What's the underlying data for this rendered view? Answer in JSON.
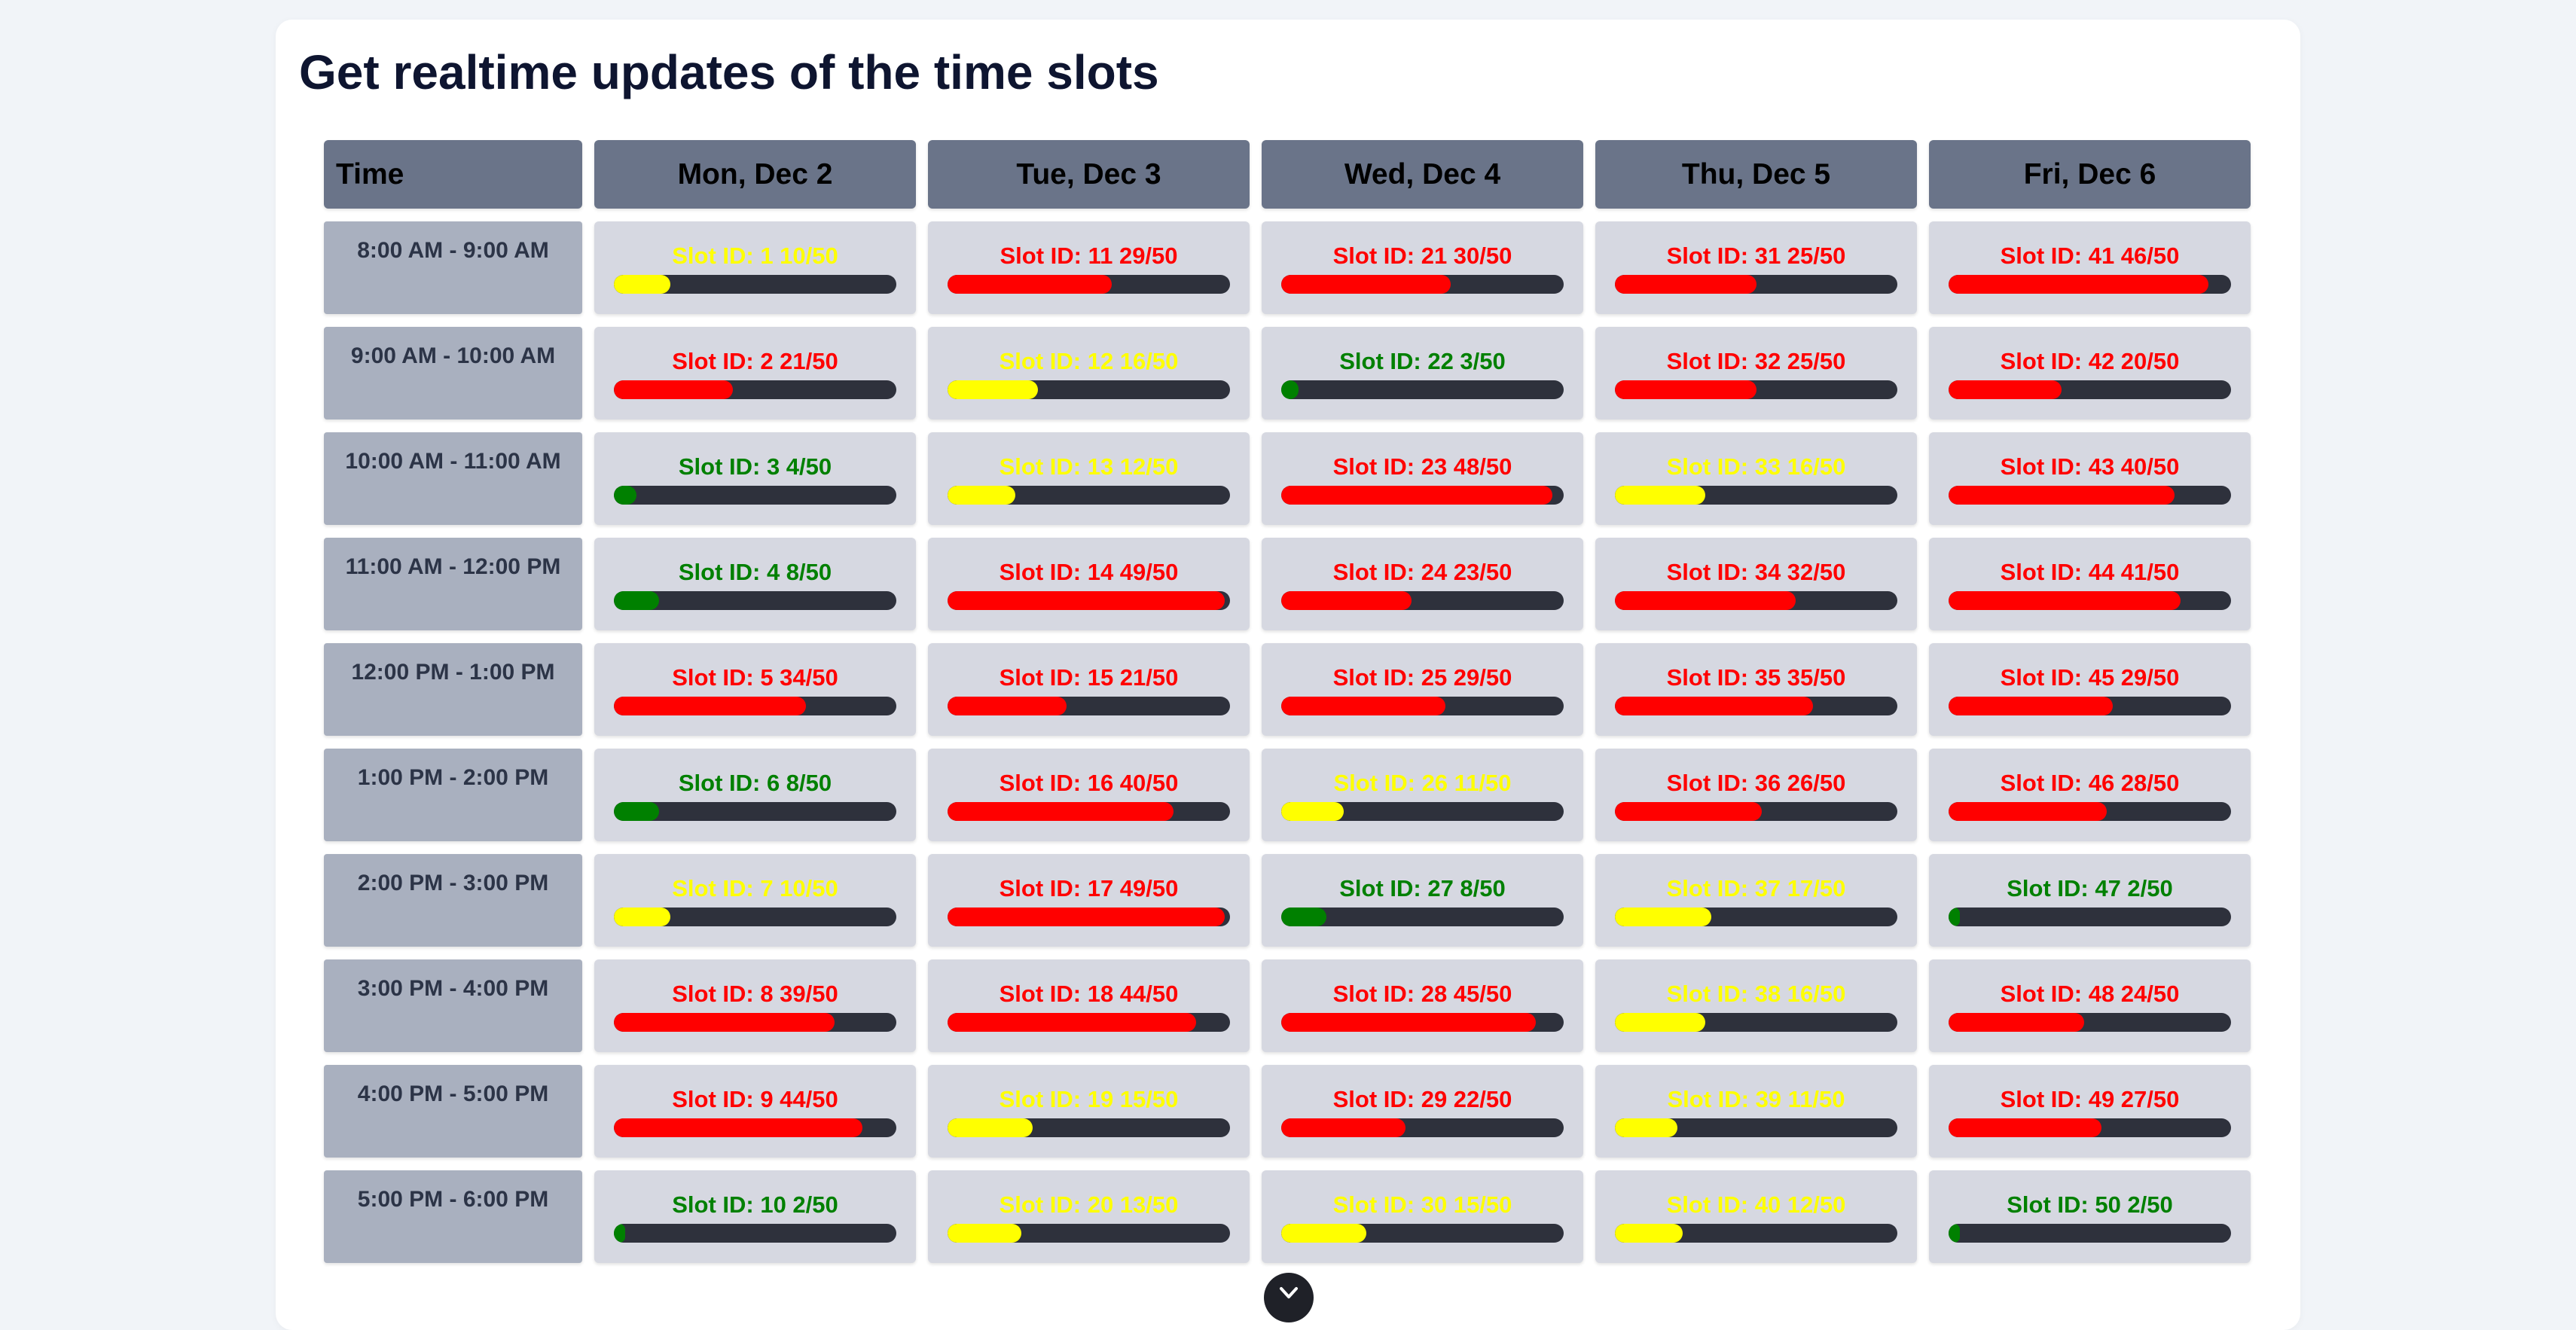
{
  "title": "Get realtime updates of the time slots",
  "colors": {
    "low": "#008000",
    "medium": "#ffff00",
    "high": "#ff0000",
    "bar_track": "#2e313c"
  },
  "capacity": 50,
  "header": {
    "time_label": "Time",
    "days": [
      "Mon, Dec 2",
      "Tue, Dec 3",
      "Wed, Dec 4",
      "Thu, Dec 5",
      "Fri, Dec 6"
    ]
  },
  "rows": [
    {
      "time": "8:00 AM - 9:00 AM",
      "slots": [
        {
          "label": "Slot ID: 1 10/50",
          "booked": 10,
          "status": "medium"
        },
        {
          "label": "Slot ID: 11 29/50",
          "booked": 29,
          "status": "high"
        },
        {
          "label": "Slot ID: 21 30/50",
          "booked": 30,
          "status": "high"
        },
        {
          "label": "Slot ID: 31 25/50",
          "booked": 25,
          "status": "high"
        },
        {
          "label": "Slot ID: 41 46/50",
          "booked": 46,
          "status": "high"
        }
      ]
    },
    {
      "time": "9:00 AM - 10:00 AM",
      "slots": [
        {
          "label": "Slot ID: 2 21/50",
          "booked": 21,
          "status": "high"
        },
        {
          "label": "Slot ID: 12 16/50",
          "booked": 16,
          "status": "medium"
        },
        {
          "label": "Slot ID: 22 3/50",
          "booked": 3,
          "status": "low"
        },
        {
          "label": "Slot ID: 32 25/50",
          "booked": 25,
          "status": "high"
        },
        {
          "label": "Slot ID: 42 20/50",
          "booked": 20,
          "status": "high"
        }
      ]
    },
    {
      "time": "10:00 AM - 11:00 AM",
      "slots": [
        {
          "label": "Slot ID: 3 4/50",
          "booked": 4,
          "status": "low"
        },
        {
          "label": "Slot ID: 13 12/50",
          "booked": 12,
          "status": "medium"
        },
        {
          "label": "Slot ID: 23 48/50",
          "booked": 48,
          "status": "high"
        },
        {
          "label": "Slot ID: 33 16/50",
          "booked": 16,
          "status": "medium"
        },
        {
          "label": "Slot ID: 43 40/50",
          "booked": 40,
          "status": "high"
        }
      ]
    },
    {
      "time": "11:00 AM - 12:00 PM",
      "slots": [
        {
          "label": "Slot ID: 4 8/50",
          "booked": 8,
          "status": "low"
        },
        {
          "label": "Slot ID: 14 49/50",
          "booked": 49,
          "status": "high"
        },
        {
          "label": "Slot ID: 24 23/50",
          "booked": 23,
          "status": "high"
        },
        {
          "label": "Slot ID: 34 32/50",
          "booked": 32,
          "status": "high"
        },
        {
          "label": "Slot ID: 44 41/50",
          "booked": 41,
          "status": "high"
        }
      ]
    },
    {
      "time": "12:00 PM - 1:00 PM",
      "slots": [
        {
          "label": "Slot ID: 5 34/50",
          "booked": 34,
          "status": "high"
        },
        {
          "label": "Slot ID: 15 21/50",
          "booked": 21,
          "status": "high"
        },
        {
          "label": "Slot ID: 25 29/50",
          "booked": 29,
          "status": "high"
        },
        {
          "label": "Slot ID: 35 35/50",
          "booked": 35,
          "status": "high"
        },
        {
          "label": "Slot ID: 45 29/50",
          "booked": 29,
          "status": "high"
        }
      ]
    },
    {
      "time": "1:00 PM - 2:00 PM",
      "slots": [
        {
          "label": "Slot ID: 6 8/50",
          "booked": 8,
          "status": "low"
        },
        {
          "label": "Slot ID: 16 40/50",
          "booked": 40,
          "status": "high"
        },
        {
          "label": "Slot ID: 26 11/50",
          "booked": 11,
          "status": "medium"
        },
        {
          "label": "Slot ID: 36 26/50",
          "booked": 26,
          "status": "high"
        },
        {
          "label": "Slot ID: 46 28/50",
          "booked": 28,
          "status": "high"
        }
      ]
    },
    {
      "time": "2:00 PM - 3:00 PM",
      "slots": [
        {
          "label": "Slot ID: 7 10/50",
          "booked": 10,
          "status": "medium"
        },
        {
          "label": "Slot ID: 17 49/50",
          "booked": 49,
          "status": "high"
        },
        {
          "label": "Slot ID: 27 8/50",
          "booked": 8,
          "status": "low"
        },
        {
          "label": "Slot ID: 37 17/50",
          "booked": 17,
          "status": "medium"
        },
        {
          "label": "Slot ID: 47 2/50",
          "booked": 2,
          "status": "low"
        }
      ]
    },
    {
      "time": "3:00 PM - 4:00 PM",
      "slots": [
        {
          "label": "Slot ID: 8 39/50",
          "booked": 39,
          "status": "high"
        },
        {
          "label": "Slot ID: 18 44/50",
          "booked": 44,
          "status": "high"
        },
        {
          "label": "Slot ID: 28 45/50",
          "booked": 45,
          "status": "high"
        },
        {
          "label": "Slot ID: 38 16/50",
          "booked": 16,
          "status": "medium"
        },
        {
          "label": "Slot ID: 48 24/50",
          "booked": 24,
          "status": "high"
        }
      ]
    },
    {
      "time": "4:00 PM - 5:00 PM",
      "slots": [
        {
          "label": "Slot ID: 9 44/50",
          "booked": 44,
          "status": "high"
        },
        {
          "label": "Slot ID: 19 15/50",
          "booked": 15,
          "status": "medium"
        },
        {
          "label": "Slot ID: 29 22/50",
          "booked": 22,
          "status": "high"
        },
        {
          "label": "Slot ID: 39 11/50",
          "booked": 11,
          "status": "medium"
        },
        {
          "label": "Slot ID: 49 27/50",
          "booked": 27,
          "status": "high"
        }
      ]
    },
    {
      "time": "5:00 PM - 6:00 PM",
      "slots": [
        {
          "label": "Slot ID: 10 2/50",
          "booked": 2,
          "status": "low"
        },
        {
          "label": "Slot ID: 20 13/50",
          "booked": 13,
          "status": "medium"
        },
        {
          "label": "Slot ID: 30 15/50",
          "booked": 15,
          "status": "medium"
        },
        {
          "label": "Slot ID: 40 12/50",
          "booked": 12,
          "status": "medium"
        },
        {
          "label": "Slot ID: 50 2/50",
          "booked": 2,
          "status": "low"
        }
      ]
    }
  ],
  "scroll_button": {
    "icon": "chevron-down-icon"
  }
}
